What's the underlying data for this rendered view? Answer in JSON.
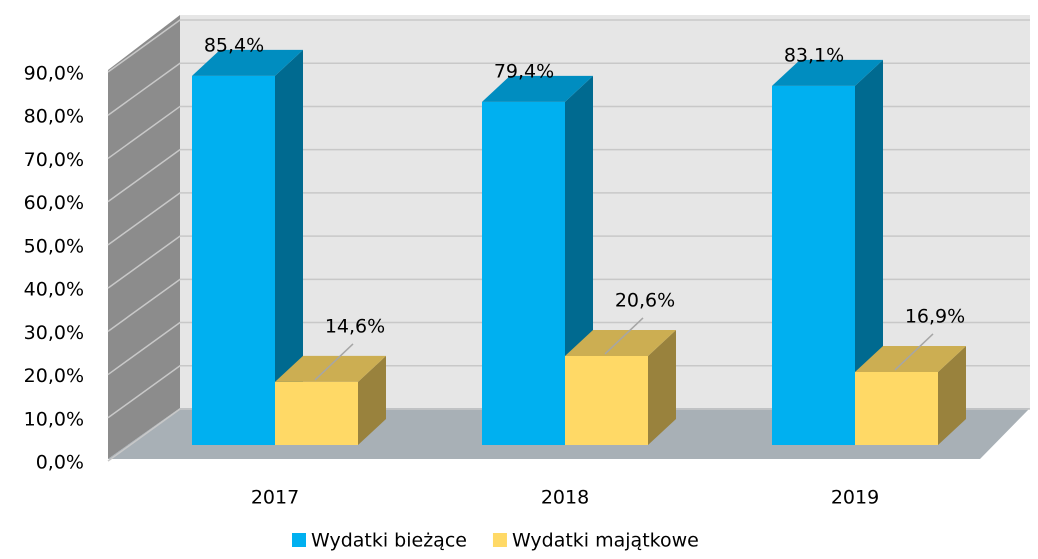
{
  "chart_data": {
    "type": "bar3d",
    "categories": [
      "2017",
      "2018",
      "2019"
    ],
    "series": [
      {
        "name": "Wydatki bieżące",
        "color": "#00b0f0",
        "values": [
          85.4,
          79.4,
          83.1
        ],
        "value_labels": [
          "85,4%",
          "79,4%",
          "83,1%"
        ]
      },
      {
        "name": "Wydatki majątkowe",
        "color": "#ffd966",
        "values": [
          14.6,
          20.6,
          16.9
        ],
        "value_labels": [
          "14,6%",
          "20,6%",
          "16,9%"
        ]
      }
    ],
    "ylim": [
      0,
      90
    ],
    "yticks": [
      {
        "value": 0,
        "label": "0,0%"
      },
      {
        "value": 10,
        "label": "10,0%"
      },
      {
        "value": 20,
        "label": "20,0%"
      },
      {
        "value": 30,
        "label": "30,0%"
      },
      {
        "value": 40,
        "label": "40,0%"
      },
      {
        "value": 50,
        "label": "50,0%"
      },
      {
        "value": 60,
        "label": "60,0%"
      },
      {
        "value": 70,
        "label": "70,0%"
      },
      {
        "value": 80,
        "label": "80,0%"
      },
      {
        "value": 90,
        "label": "90,0%"
      }
    ],
    "grid": true,
    "legend": "bottom"
  }
}
